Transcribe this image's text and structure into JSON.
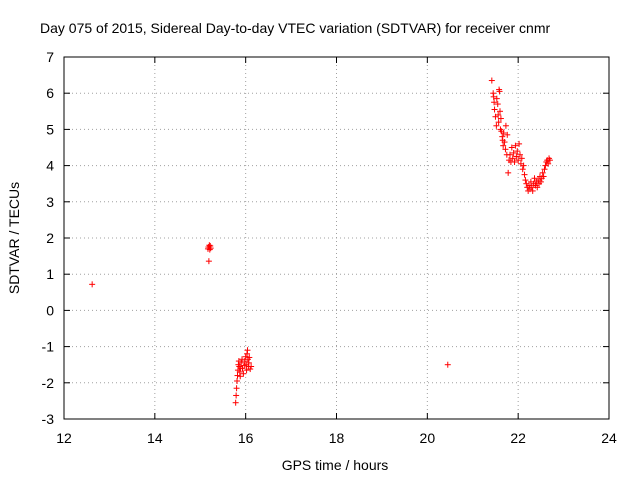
{
  "chart_data": {
    "type": "scatter",
    "title": "Day 075 of 2015, Sidereal Day-to-day VTEC variation (SDTVAR) for receiver cnmr",
    "xlabel": "GPS time / hours",
    "ylabel": "SDTVAR / TECUs",
    "xlim": [
      12,
      24
    ],
    "ylim": [
      -3,
      7
    ],
    "xticks": [
      12,
      14,
      16,
      18,
      20,
      22,
      24
    ],
    "yticks": [
      -3,
      -2,
      -1,
      0,
      1,
      2,
      3,
      4,
      5,
      6,
      7
    ],
    "grid": true,
    "marker": "+",
    "color": "#ff0000",
    "series": [
      {
        "name": "cnmr",
        "points": [
          [
            12.62,
            0.72
          ],
          [
            15.17,
            1.7
          ],
          [
            15.18,
            1.75
          ],
          [
            15.2,
            1.8
          ],
          [
            15.21,
            1.68
          ],
          [
            15.22,
            1.78
          ],
          [
            15.23,
            1.72
          ],
          [
            15.19,
            1.36
          ],
          [
            15.78,
            -2.55
          ],
          [
            15.79,
            -2.35
          ],
          [
            15.8,
            -2.15
          ],
          [
            15.81,
            -1.95
          ],
          [
            15.82,
            -1.8
          ],
          [
            15.83,
            -1.65
          ],
          [
            15.84,
            -1.5
          ],
          [
            15.85,
            -1.4
          ],
          [
            15.86,
            -1.55
          ],
          [
            15.87,
            -1.7
          ],
          [
            15.88,
            -1.82
          ],
          [
            15.89,
            -1.6
          ],
          [
            15.9,
            -1.45
          ],
          [
            15.92,
            -1.35
          ],
          [
            15.93,
            -1.6
          ],
          [
            15.95,
            -1.75
          ],
          [
            15.97,
            -1.52
          ],
          [
            15.98,
            -1.4
          ],
          [
            16.0,
            -1.28
          ],
          [
            16.01,
            -1.5
          ],
          [
            16.02,
            -1.65
          ],
          [
            16.03,
            -1.2
          ],
          [
            16.04,
            -1.1
          ],
          [
            16.05,
            -1.35
          ],
          [
            16.06,
            -1.55
          ],
          [
            16.07,
            -1.45
          ],
          [
            16.08,
            -1.3
          ],
          [
            16.1,
            -1.62
          ],
          [
            16.12,
            -1.55
          ],
          [
            20.45,
            -1.5
          ],
          [
            21.42,
            6.35
          ],
          [
            21.45,
            6.0
          ],
          [
            21.46,
            5.9
          ],
          [
            21.47,
            5.75
          ],
          [
            21.48,
            5.55
          ],
          [
            21.5,
            5.35
          ],
          [
            21.52,
            5.1
          ],
          [
            21.53,
            5.85
          ],
          [
            21.55,
            5.7
          ],
          [
            21.56,
            5.4
          ],
          [
            21.57,
            5.2
          ],
          [
            21.58,
            6.1
          ],
          [
            21.59,
            6.05
          ],
          [
            21.6,
            5.5
          ],
          [
            21.61,
            5.0
          ],
          [
            21.62,
            5.3
          ],
          [
            21.63,
            4.95
          ],
          [
            21.65,
            4.8
          ],
          [
            21.66,
            4.7
          ],
          [
            21.67,
            4.55
          ],
          [
            21.68,
            4.9
          ],
          [
            21.7,
            4.65
          ],
          [
            21.72,
            4.45
          ],
          [
            21.73,
            5.1
          ],
          [
            21.75,
            4.3
          ],
          [
            21.76,
            4.85
          ],
          [
            21.78,
            3.8
          ],
          [
            21.8,
            4.15
          ],
          [
            21.82,
            4.3
          ],
          [
            21.84,
            4.1
          ],
          [
            21.86,
            4.5
          ],
          [
            21.88,
            4.2
          ],
          [
            21.9,
            4.35
          ],
          [
            21.92,
            4.1
          ],
          [
            21.94,
            4.55
          ],
          [
            21.96,
            4.25
          ],
          [
            21.98,
            4.4
          ],
          [
            22.0,
            4.15
          ],
          [
            22.02,
            4.6
          ],
          [
            22.04,
            4.3
          ],
          [
            22.06,
            4.05
          ],
          [
            22.08,
            4.2
          ],
          [
            22.1,
            3.9
          ],
          [
            22.12,
            4.0
          ],
          [
            22.14,
            3.75
          ],
          [
            22.16,
            3.6
          ],
          [
            22.18,
            3.5
          ],
          [
            22.2,
            3.4
          ],
          [
            22.22,
            3.3
          ],
          [
            22.24,
            3.45
          ],
          [
            22.26,
            3.35
          ],
          [
            22.28,
            3.55
          ],
          [
            22.3,
            3.4
          ],
          [
            22.32,
            3.3
          ],
          [
            22.34,
            3.5
          ],
          [
            22.36,
            3.65
          ],
          [
            22.38,
            3.45
          ],
          [
            22.4,
            3.55
          ],
          [
            22.42,
            3.4
          ],
          [
            22.44,
            3.6
          ],
          [
            22.46,
            3.5
          ],
          [
            22.48,
            3.7
          ],
          [
            22.5,
            3.55
          ],
          [
            22.52,
            3.65
          ],
          [
            22.54,
            3.8
          ],
          [
            22.56,
            3.7
          ],
          [
            22.58,
            3.9
          ],
          [
            22.6,
            4.0
          ],
          [
            22.62,
            4.1
          ],
          [
            22.64,
            4.15
          ],
          [
            22.66,
            4.05
          ],
          [
            22.68,
            4.2
          ],
          [
            22.7,
            4.15
          ]
        ]
      }
    ]
  }
}
